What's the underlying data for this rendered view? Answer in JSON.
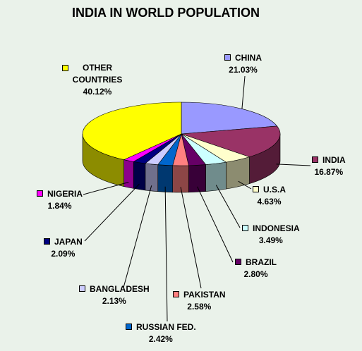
{
  "chart_data": {
    "type": "pie3d",
    "title": "INDIA IN WORLD POPULATION",
    "categories": [
      "CHINA",
      "INDIA",
      "U.S.A",
      "INDONESIA",
      "BRAZIL",
      "PAKISTAN",
      "RUSSIAN FED.",
      "BANGLADESH",
      "JAPAN",
      "NIGERIA",
      "OTHER COUNTRIES"
    ],
    "values": [
      21.03,
      16.87,
      4.63,
      3.49,
      2.8,
      2.58,
      2.42,
      2.13,
      2.09,
      1.84,
      40.12
    ],
    "value_labels": [
      "21.03%",
      "16.87%",
      "4.63%",
      "3.49%",
      "2.80%",
      "2.58%",
      "2.42%",
      "2.13%",
      "2.09%",
      "1.84%",
      "40.12%"
    ],
    "colors": [
      "#9999ff",
      "#993366",
      "#ffffcc",
      "#ccffff",
      "#660066",
      "#ff8080",
      "#0066cc",
      "#ccccff",
      "#000080",
      "#ff00ff",
      "#ffff00"
    ]
  }
}
